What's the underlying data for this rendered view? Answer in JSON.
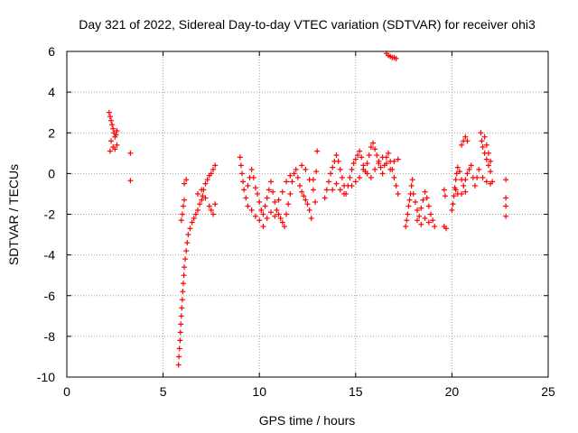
{
  "chart_data": {
    "type": "scatter",
    "title": "Day 321 of 2022, Sidereal Day-to-day VTEC variation (SDTVAR) for receiver ohi3",
    "xlabel": "GPS time / hours",
    "ylabel": "SDTVAR / TECUs",
    "xlim": [
      0,
      25
    ],
    "ylim": [
      -10,
      6
    ],
    "xticks": [
      0,
      5,
      10,
      15,
      20,
      25
    ],
    "yticks": [
      -10,
      -8,
      -6,
      -4,
      -2,
      0,
      2,
      4,
      6
    ],
    "grid": true,
    "marker": "+",
    "series": [
      {
        "name": "SDTVAR",
        "color": "#ff0000",
        "points": [
          [
            2.2,
            3.0
          ],
          [
            2.25,
            2.8
          ],
          [
            2.3,
            2.6
          ],
          [
            2.35,
            2.4
          ],
          [
            2.4,
            2.2
          ],
          [
            2.45,
            2.0
          ],
          [
            2.5,
            1.8
          ],
          [
            2.3,
            1.6
          ],
          [
            2.4,
            1.3
          ],
          [
            2.5,
            1.2
          ],
          [
            2.6,
            1.4
          ],
          [
            2.55,
            1.9
          ],
          [
            2.6,
            2.1
          ],
          [
            2.25,
            1.1
          ],
          [
            3.3,
            1.0
          ],
          [
            3.3,
            -0.35
          ],
          [
            5.8,
            -9.4
          ],
          [
            5.82,
            -9.0
          ],
          [
            5.85,
            -8.6
          ],
          [
            5.88,
            -8.2
          ],
          [
            5.9,
            -7.8
          ],
          [
            5.92,
            -7.4
          ],
          [
            5.95,
            -7.0
          ],
          [
            5.97,
            -6.6
          ],
          [
            6.0,
            -6.2
          ],
          [
            6.02,
            -5.8
          ],
          [
            6.05,
            -5.4
          ],
          [
            6.08,
            -5.0
          ],
          [
            6.1,
            -4.6
          ],
          [
            6.15,
            -4.2
          ],
          [
            6.2,
            -3.8
          ],
          [
            6.25,
            -3.4
          ],
          [
            6.3,
            -3.0
          ],
          [
            6.4,
            -2.7
          ],
          [
            6.5,
            -2.4
          ],
          [
            6.6,
            -2.2
          ],
          [
            5.95,
            -2.3
          ],
          [
            6.0,
            -2.0
          ],
          [
            6.05,
            -1.6
          ],
          [
            6.1,
            -1.3
          ],
          [
            6.1,
            -0.5
          ],
          [
            6.2,
            -0.3
          ],
          [
            6.7,
            -2.0
          ],
          [
            6.8,
            -1.8
          ],
          [
            6.9,
            -1.5
          ],
          [
            7.0,
            -1.3
          ],
          [
            7.05,
            -1.1
          ],
          [
            7.1,
            -0.8
          ],
          [
            7.2,
            -0.5
          ],
          [
            7.3,
            -0.3
          ],
          [
            7.4,
            -0.1
          ],
          [
            7.5,
            0.0
          ],
          [
            7.6,
            0.2
          ],
          [
            7.7,
            0.4
          ],
          [
            6.8,
            -1.0
          ],
          [
            7.0,
            -0.8
          ],
          [
            7.2,
            -1.2
          ],
          [
            7.4,
            -1.6
          ],
          [
            7.5,
            -1.8
          ],
          [
            7.6,
            -2.0
          ],
          [
            7.7,
            -1.5
          ],
          [
            9.0,
            0.8
          ],
          [
            9.05,
            0.4
          ],
          [
            9.1,
            0.0
          ],
          [
            9.15,
            -0.4
          ],
          [
            9.2,
            -0.8
          ],
          [
            9.3,
            -1.2
          ],
          [
            9.4,
            -0.6
          ],
          [
            9.5,
            -0.2
          ],
          [
            9.6,
            0.2
          ],
          [
            9.7,
            -0.2
          ],
          [
            9.8,
            -0.7
          ],
          [
            9.9,
            -1.0
          ],
          [
            10.0,
            -1.4
          ],
          [
            10.1,
            -1.8
          ],
          [
            10.2,
            -2.0
          ],
          [
            10.3,
            -1.6
          ],
          [
            10.4,
            -1.2
          ],
          [
            10.5,
            -0.8
          ],
          [
            10.6,
            -0.4
          ],
          [
            10.7,
            -0.9
          ],
          [
            10.8,
            -1.4
          ],
          [
            10.9,
            -1.8
          ],
          [
            11.0,
            -2.0
          ],
          [
            11.1,
            -2.2
          ],
          [
            11.2,
            -2.4
          ],
          [
            11.3,
            -2.6
          ],
          [
            11.4,
            -2.0
          ],
          [
            11.5,
            -1.5
          ],
          [
            11.6,
            -1.0
          ],
          [
            11.7,
            -0.4
          ],
          [
            11.8,
            0.0
          ],
          [
            11.9,
            0.2
          ],
          [
            9.4,
            -1.6
          ],
          [
            9.6,
            -1.8
          ],
          [
            9.8,
            -2.1
          ],
          [
            10.0,
            -2.3
          ],
          [
            10.2,
            -2.6
          ],
          [
            10.4,
            -2.2
          ],
          [
            10.6,
            -1.9
          ],
          [
            10.8,
            -2.1
          ],
          [
            11.0,
            -1.3
          ],
          [
            11.2,
            -0.9
          ],
          [
            11.4,
            -0.4
          ],
          [
            11.6,
            -0.1
          ],
          [
            12.0,
            -0.2
          ],
          [
            12.1,
            -0.6
          ],
          [
            12.2,
            -0.9
          ],
          [
            12.3,
            -1.1
          ],
          [
            12.4,
            -1.3
          ],
          [
            12.5,
            -1.5
          ],
          [
            12.6,
            -1.8
          ],
          [
            12.7,
            -2.2
          ],
          [
            12.2,
            0.4
          ],
          [
            12.4,
            0.2
          ],
          [
            12.6,
            -0.3
          ],
          [
            12.8,
            -0.8
          ],
          [
            12.9,
            -1.4
          ],
          [
            12.95,
            0.1
          ],
          [
            12.8,
            -0.3
          ],
          [
            13.0,
            1.1
          ],
          [
            13.4,
            -1.2
          ],
          [
            13.5,
            -0.8
          ],
          [
            13.6,
            -0.4
          ],
          [
            13.7,
            0.0
          ],
          [
            13.8,
            0.3
          ],
          [
            13.9,
            0.6
          ],
          [
            14.0,
            0.9
          ],
          [
            14.1,
            0.6
          ],
          [
            14.2,
            0.2
          ],
          [
            14.3,
            -0.2
          ],
          [
            14.4,
            -0.6
          ],
          [
            14.5,
            -1.0
          ],
          [
            14.6,
            -0.6
          ],
          [
            14.7,
            -0.2
          ],
          [
            14.8,
            0.2
          ],
          [
            14.9,
            0.5
          ],
          [
            15.0,
            0.7
          ],
          [
            15.1,
            0.9
          ],
          [
            15.2,
            1.1
          ],
          [
            15.3,
            0.8
          ],
          [
            15.4,
            0.4
          ],
          [
            15.5,
            0.1
          ],
          [
            15.6,
            0.5
          ],
          [
            15.7,
            0.9
          ],
          [
            15.8,
            1.3
          ],
          [
            15.9,
            1.5
          ],
          [
            16.0,
            1.2
          ],
          [
            16.1,
            0.9
          ],
          [
            16.2,
            0.6
          ],
          [
            16.3,
            0.3
          ],
          [
            16.4,
            0.0
          ],
          [
            16.5,
            0.4
          ],
          [
            16.6,
            0.8
          ],
          [
            16.7,
            1.0
          ],
          [
            16.8,
            0.6
          ],
          [
            16.9,
            0.2
          ],
          [
            17.0,
            -0.2
          ],
          [
            17.1,
            -0.6
          ],
          [
            17.2,
            -1.0
          ],
          [
            13.8,
            -0.8
          ],
          [
            14.0,
            -0.5
          ],
          [
            14.2,
            -0.8
          ],
          [
            14.4,
            -1.0
          ],
          [
            14.8,
            -0.6
          ],
          [
            15.0,
            -0.4
          ],
          [
            15.2,
            -0.2
          ],
          [
            15.4,
            0.2
          ],
          [
            15.6,
            0.0
          ],
          [
            15.8,
            -0.2
          ],
          [
            16.0,
            0.2
          ],
          [
            16.2,
            0.5
          ],
          [
            16.4,
            0.8
          ],
          [
            16.6,
            0.5
          ],
          [
            16.8,
            0.2
          ],
          [
            17.0,
            0.6
          ],
          [
            17.2,
            0.7
          ],
          [
            16.6,
            5.9
          ],
          [
            16.7,
            5.8
          ],
          [
            16.8,
            5.75
          ],
          [
            16.9,
            5.7
          ],
          [
            17.0,
            5.7
          ],
          [
            17.1,
            5.65
          ],
          [
            17.6,
            -2.6
          ],
          [
            17.65,
            -2.3
          ],
          [
            17.7,
            -2.0
          ],
          [
            17.75,
            -1.6
          ],
          [
            17.8,
            -1.3
          ],
          [
            17.85,
            -1.0
          ],
          [
            17.9,
            -0.6
          ],
          [
            17.95,
            -0.3
          ],
          [
            18.0,
            -1.0
          ],
          [
            18.1,
            -1.4
          ],
          [
            18.2,
            -1.8
          ],
          [
            18.3,
            -2.1
          ],
          [
            18.4,
            -1.7
          ],
          [
            18.5,
            -1.3
          ],
          [
            18.6,
            -0.9
          ],
          [
            18.7,
            -1.2
          ],
          [
            18.8,
            -1.6
          ],
          [
            18.9,
            -2.0
          ],
          [
            19.0,
            -2.3
          ],
          [
            19.1,
            -2.6
          ],
          [
            18.2,
            -2.3
          ],
          [
            18.4,
            -2.5
          ],
          [
            18.6,
            -2.2
          ],
          [
            18.8,
            -2.4
          ],
          [
            19.6,
            -0.8
          ],
          [
            19.65,
            -1.1
          ],
          [
            19.6,
            -2.6
          ],
          [
            19.7,
            -2.7
          ],
          [
            20.0,
            -1.8
          ],
          [
            20.05,
            -1.5
          ],
          [
            20.1,
            -1.1
          ],
          [
            20.15,
            -0.7
          ],
          [
            20.2,
            -0.3
          ],
          [
            20.25,
            0.0
          ],
          [
            20.3,
            0.3
          ],
          [
            20.4,
            0.1
          ],
          [
            20.5,
            -0.3
          ],
          [
            20.6,
            -0.6
          ],
          [
            20.7,
            -0.3
          ],
          [
            20.8,
            0.0
          ],
          [
            20.9,
            0.2
          ],
          [
            21.0,
            0.4
          ],
          [
            21.1,
            -0.2
          ],
          [
            21.2,
            -0.6
          ],
          [
            21.3,
            -0.2
          ],
          [
            21.4,
            0.2
          ],
          [
            20.3,
            -1.0
          ],
          [
            20.5,
            -1.0
          ],
          [
            20.7,
            -0.9
          ],
          [
            20.2,
            -0.8
          ],
          [
            20.5,
            1.4
          ],
          [
            20.6,
            1.6
          ],
          [
            20.7,
            1.8
          ],
          [
            20.8,
            1.6
          ],
          [
            21.5,
            2.0
          ],
          [
            21.55,
            1.6
          ],
          [
            21.6,
            1.3
          ],
          [
            21.7,
            1.0
          ],
          [
            21.8,
            0.7
          ],
          [
            21.9,
            0.4
          ],
          [
            22.0,
            0.1
          ],
          [
            21.7,
            1.8
          ],
          [
            21.8,
            1.4
          ],
          [
            21.9,
            1.0
          ],
          [
            22.0,
            0.6
          ],
          [
            21.6,
            -0.2
          ],
          [
            21.8,
            -0.4
          ],
          [
            22.0,
            -0.5
          ],
          [
            22.1,
            -0.4
          ],
          [
            22.8,
            -0.3
          ],
          [
            22.8,
            -1.2
          ],
          [
            22.8,
            -1.6
          ],
          [
            22.8,
            -2.1
          ]
        ]
      }
    ]
  }
}
